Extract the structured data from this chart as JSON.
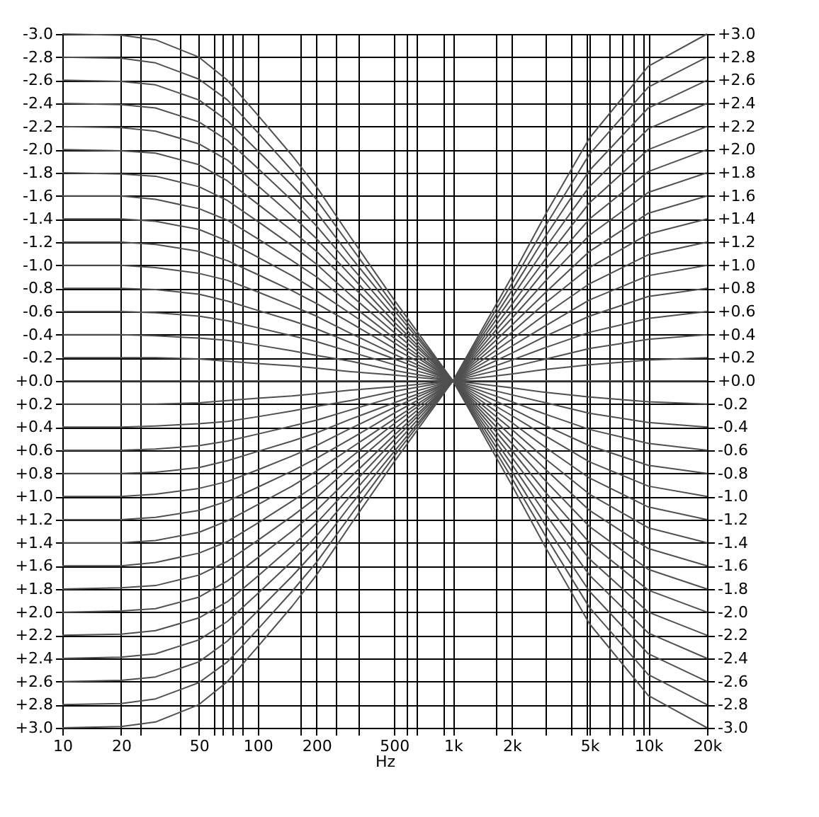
{
  "chart_data": {
    "type": "line",
    "xlabel": "Hz",
    "log": "x",
    "grid": true,
    "legend": false,
    "marker": "none",
    "line_style": "solid",
    "x": [
      10,
      20,
      30,
      50,
      70,
      100,
      150,
      200,
      300,
      500,
      1000,
      2000,
      3000,
      5000,
      10000,
      20000
    ],
    "xlim": [
      10,
      20000
    ],
    "xticks": [
      10,
      20,
      {
        "value": 25,
        "label": null
      },
      {
        "value": 40,
        "label": null
      },
      50,
      {
        "value": 60,
        "label": null
      },
      {
        "value": 66,
        "label": null
      },
      {
        "value": 74,
        "label": null
      },
      {
        "value": 83,
        "label": null
      },
      100,
      {
        "value": 165,
        "label": null
      },
      200,
      {
        "value": 250,
        "label": null
      },
      {
        "value": 330,
        "label": null
      },
      500,
      {
        "value": 580,
        "label": null
      },
      {
        "value": 655,
        "label": null
      },
      {
        "value": 900,
        "label": null
      },
      {
        "value": 1000,
        "label": "1k"
      },
      {
        "value": 1650,
        "label": null
      },
      {
        "value": 2000,
        "label": "2k"
      },
      {
        "value": 3000,
        "label": null
      },
      {
        "value": 4000,
        "label": null
      },
      {
        "value": 4800,
        "label": null
      },
      {
        "value": 5000,
        "label": "5k"
      },
      {
        "value": 6300,
        "label": null
      },
      {
        "value": 7300,
        "label": null
      },
      {
        "value": 8400,
        "label": null
      },
      {
        "value": 9400,
        "label": null
      },
      {
        "value": 10000,
        "label": "10k"
      },
      {
        "value": 20000,
        "label": "20k"
      }
    ],
    "ylim": [
      3.0,
      -3.0
    ],
    "yticks": [
      {
        "value": -3.0,
        "label": "-3.0"
      },
      {
        "value": -2.8,
        "label": "-2.8"
      },
      {
        "value": -2.6,
        "label": "-2.6"
      },
      {
        "value": -2.4,
        "label": "-2.4"
      },
      {
        "value": -2.2,
        "label": "-2.2"
      },
      {
        "value": -2.0,
        "label": "-2.0"
      },
      {
        "value": -1.8,
        "label": "-1.8"
      },
      {
        "value": -1.6,
        "label": "-1.6"
      },
      {
        "value": -1.4,
        "label": "-1.4"
      },
      {
        "value": -1.2,
        "label": "-1.2"
      },
      {
        "value": -1.0,
        "label": "-1.0"
      },
      {
        "value": -0.8,
        "label": "-0.8"
      },
      {
        "value": -0.6,
        "label": "-0.6"
      },
      {
        "value": -0.4,
        "label": "-0.4"
      },
      {
        "value": -0.2,
        "label": "-0.2"
      },
      {
        "value": 0.0,
        "label": "+0.0"
      },
      {
        "value": 0.2,
        "label": "+0.2"
      },
      {
        "value": 0.4,
        "label": "+0.4"
      },
      {
        "value": 0.6,
        "label": "+0.6"
      },
      {
        "value": 0.8,
        "label": "+0.8"
      },
      {
        "value": 1.0,
        "label": "+1.0"
      },
      {
        "value": 1.2,
        "label": "+1.2"
      },
      {
        "value": 1.4,
        "label": "+1.4"
      },
      {
        "value": 1.6,
        "label": "+1.6"
      },
      {
        "value": 1.8,
        "label": "+1.8"
      },
      {
        "value": 2.0,
        "label": "+2.0"
      },
      {
        "value": 2.2,
        "label": "+2.2"
      },
      {
        "value": 2.4,
        "label": "+2.4"
      },
      {
        "value": 2.6,
        "label": "+2.6"
      },
      {
        "value": 2.8,
        "label": "+2.8"
      },
      {
        "value": 3.0,
        "label": "+3.0"
      }
    ],
    "y2lim": [
      -3.0,
      3.0
    ],
    "y2ticks": [
      {
        "value": -3.0,
        "label": "-3.0"
      },
      {
        "value": -2.8,
        "label": "-2.8"
      },
      {
        "value": -2.6,
        "label": "-2.6"
      },
      {
        "value": -2.4,
        "label": "-2.4"
      },
      {
        "value": -2.2,
        "label": "-2.2"
      },
      {
        "value": -2.0,
        "label": "-2.0"
      },
      {
        "value": -1.8,
        "label": "-1.8"
      },
      {
        "value": -1.6,
        "label": "-1.6"
      },
      {
        "value": -1.4,
        "label": "-1.4"
      },
      {
        "value": -1.2,
        "label": "-1.2"
      },
      {
        "value": -1.0,
        "label": "-1.0"
      },
      {
        "value": -0.8,
        "label": "-0.8"
      },
      {
        "value": -0.6,
        "label": "-0.6"
      },
      {
        "value": -0.4,
        "label": "-0.4"
      },
      {
        "value": -0.2,
        "label": "-0.2"
      },
      {
        "value": 0.0,
        "label": "+0.0"
      },
      {
        "value": 0.2,
        "label": "+0.2"
      },
      {
        "value": 0.4,
        "label": "+0.4"
      },
      {
        "value": 0.6,
        "label": "+0.6"
      },
      {
        "value": 0.8,
        "label": "+0.8"
      },
      {
        "value": 1.0,
        "label": "+1.0"
      },
      {
        "value": 1.2,
        "label": "+1.2"
      },
      {
        "value": 1.4,
        "label": "+1.4"
      },
      {
        "value": 1.6,
        "label": "+1.6"
      },
      {
        "value": 1.8,
        "label": "+1.8"
      },
      {
        "value": 2.0,
        "label": "+2.0"
      },
      {
        "value": 2.2,
        "label": "+2.2"
      },
      {
        "value": 2.4,
        "label": "+2.4"
      },
      {
        "value": 2.6,
        "label": "+2.6"
      },
      {
        "value": 2.8,
        "label": "+2.8"
      },
      {
        "value": 3.0,
        "label": "+3.0"
      }
    ],
    "series": [
      {
        "color": "#505050",
        "values": [
          0,
          0,
          0,
          0,
          0,
          0,
          0,
          0,
          0,
          0,
          0,
          0,
          0,
          0,
          0,
          0
        ]
      },
      {
        "color": "#505050",
        "values": [
          -0.2,
          -0.2,
          -0.2,
          -0.19,
          -0.17,
          -0.15,
          -0.13,
          -0.11,
          -0.08,
          -0.05,
          0,
          0.06,
          0.1,
          0.14,
          0.18,
          0.2
        ]
      },
      {
        "color": "#505050",
        "values": [
          -0.4,
          -0.4,
          -0.39,
          -0.37,
          -0.35,
          -0.31,
          -0.26,
          -0.22,
          -0.17,
          -0.09,
          0,
          0.12,
          0.19,
          0.28,
          0.36,
          0.4
        ]
      },
      {
        "color": "#505050",
        "values": [
          -0.6,
          -0.6,
          -0.59,
          -0.56,
          -0.52,
          -0.46,
          -0.39,
          -0.34,
          -0.25,
          -0.14,
          0,
          0.18,
          0.29,
          0.42,
          0.54,
          0.6
        ]
      },
      {
        "color": "#505050",
        "values": [
          -0.8,
          -0.8,
          -0.79,
          -0.75,
          -0.69,
          -0.61,
          -0.52,
          -0.45,
          -0.33,
          -0.19,
          0,
          0.24,
          0.39,
          0.56,
          0.73,
          0.8
        ]
      },
      {
        "color": "#505050",
        "values": [
          -1.0,
          -1.0,
          -0.98,
          -0.93,
          -0.87,
          -0.77,
          -0.65,
          -0.56,
          -0.41,
          -0.23,
          0,
          0.3,
          0.48,
          0.7,
          0.91,
          1.0
        ]
      },
      {
        "color": "#505050",
        "values": [
          -1.2,
          -1.2,
          -1.18,
          -1.12,
          -1.04,
          -0.92,
          -0.78,
          -0.67,
          -0.5,
          -0.28,
          0,
          0.36,
          0.58,
          0.84,
          1.09,
          1.2
        ]
      },
      {
        "color": "#505050",
        "values": [
          -1.4,
          -1.4,
          -1.38,
          -1.31,
          -1.21,
          -1.07,
          -0.91,
          -0.78,
          -0.58,
          -0.33,
          0,
          0.42,
          0.68,
          0.98,
          1.27,
          1.4
        ]
      },
      {
        "color": "#505050",
        "values": [
          -1.6,
          -1.6,
          -1.57,
          -1.49,
          -1.39,
          -1.23,
          -1.04,
          -0.9,
          -0.66,
          -0.37,
          0,
          0.48,
          0.77,
          1.12,
          1.45,
          1.6
        ]
      },
      {
        "color": "#505050",
        "values": [
          -1.8,
          -1.79,
          -1.77,
          -1.68,
          -1.56,
          -1.38,
          -1.17,
          -1.01,
          -0.74,
          -0.42,
          0,
          0.54,
          0.87,
          1.26,
          1.63,
          1.8
        ]
      },
      {
        "color": "#505050",
        "values": [
          -2.0,
          -1.99,
          -1.97,
          -1.87,
          -1.73,
          -1.53,
          -1.3,
          -1.12,
          -0.83,
          -0.47,
          0,
          0.6,
          0.97,
          1.4,
          1.81,
          2.0
        ]
      },
      {
        "color": "#505050",
        "values": [
          -2.2,
          -2.19,
          -2.16,
          -2.05,
          -1.91,
          -1.69,
          -1.43,
          -1.23,
          -0.91,
          -0.51,
          0,
          0.66,
          1.06,
          1.54,
          2.0,
          2.2
        ]
      },
      {
        "color": "#505050",
        "values": [
          -2.4,
          -2.39,
          -2.36,
          -2.24,
          -2.08,
          -1.84,
          -1.56,
          -1.34,
          -0.99,
          -0.56,
          0,
          0.72,
          1.16,
          1.68,
          2.18,
          2.4
        ]
      },
      {
        "color": "#505050",
        "values": [
          -2.6,
          -2.59,
          -2.56,
          -2.43,
          -2.25,
          -1.99,
          -1.69,
          -1.46,
          -1.07,
          -0.61,
          0,
          0.78,
          1.26,
          1.82,
          2.36,
          2.6
        ]
      },
      {
        "color": "#505050",
        "values": [
          -2.8,
          -2.79,
          -2.75,
          -2.61,
          -2.43,
          -2.15,
          -1.82,
          -1.57,
          -1.16,
          -0.65,
          0,
          0.84,
          1.35,
          1.96,
          2.54,
          2.8
        ]
      },
      {
        "color": "#505050",
        "values": [
          -3.0,
          -2.99,
          -2.95,
          -2.8,
          -2.6,
          -2.3,
          -1.95,
          -1.68,
          -1.24,
          -0.7,
          0,
          0.9,
          1.45,
          2.1,
          2.72,
          3.0
        ]
      },
      {
        "color": "#505050",
        "axis": "y2",
        "values": [
          -0.2,
          -0.2,
          -0.2,
          -0.19,
          -0.17,
          -0.15,
          -0.13,
          -0.11,
          -0.08,
          -0.05,
          0,
          0.06,
          0.1,
          0.14,
          0.18,
          0.2
        ]
      },
      {
        "color": "#505050",
        "axis": "y2",
        "values": [
          -0.4,
          -0.4,
          -0.39,
          -0.37,
          -0.35,
          -0.31,
          -0.26,
          -0.22,
          -0.17,
          -0.09,
          0,
          0.12,
          0.19,
          0.28,
          0.36,
          0.4
        ]
      },
      {
        "color": "#505050",
        "axis": "y2",
        "values": [
          -0.6,
          -0.6,
          -0.59,
          -0.56,
          -0.52,
          -0.46,
          -0.39,
          -0.34,
          -0.25,
          -0.14,
          0,
          0.18,
          0.29,
          0.42,
          0.54,
          0.6
        ]
      },
      {
        "color": "#505050",
        "axis": "y2",
        "values": [
          -0.8,
          -0.8,
          -0.79,
          -0.75,
          -0.69,
          -0.61,
          -0.52,
          -0.45,
          -0.33,
          -0.19,
          0,
          0.24,
          0.39,
          0.56,
          0.73,
          0.8
        ]
      },
      {
        "color": "#505050",
        "axis": "y2",
        "values": [
          -1.0,
          -1.0,
          -0.98,
          -0.93,
          -0.87,
          -0.77,
          -0.65,
          -0.56,
          -0.41,
          -0.23,
          0,
          0.3,
          0.48,
          0.7,
          0.91,
          1.0
        ]
      },
      {
        "color": "#505050",
        "axis": "y2",
        "values": [
          -1.2,
          -1.2,
          -1.18,
          -1.12,
          -1.04,
          -0.92,
          -0.78,
          -0.67,
          -0.5,
          -0.28,
          0,
          0.36,
          0.58,
          0.84,
          1.09,
          1.2
        ]
      },
      {
        "color": "#505050",
        "axis": "y2",
        "values": [
          -1.4,
          -1.4,
          -1.38,
          -1.31,
          -1.21,
          -1.07,
          -0.91,
          -0.78,
          -0.58,
          -0.33,
          0,
          0.42,
          0.68,
          0.98,
          1.27,
          1.4
        ]
      },
      {
        "color": "#505050",
        "axis": "y2",
        "values": [
          -1.6,
          -1.6,
          -1.57,
          -1.49,
          -1.39,
          -1.23,
          -1.04,
          -0.9,
          -0.66,
          -0.37,
          0,
          0.48,
          0.77,
          1.12,
          1.45,
          1.6
        ]
      },
      {
        "color": "#505050",
        "axis": "y2",
        "values": [
          -1.8,
          -1.79,
          -1.77,
          -1.68,
          -1.56,
          -1.38,
          -1.17,
          -1.01,
          -0.74,
          -0.42,
          0,
          0.54,
          0.87,
          1.26,
          1.63,
          1.8
        ]
      },
      {
        "color": "#505050",
        "axis": "y2",
        "values": [
          -2.0,
          -1.99,
          -1.97,
          -1.87,
          -1.73,
          -1.53,
          -1.3,
          -1.12,
          -0.83,
          -0.47,
          0,
          0.6,
          0.97,
          1.4,
          1.81,
          2.0
        ]
      },
      {
        "color": "#505050",
        "axis": "y2",
        "values": [
          -2.2,
          -2.19,
          -2.16,
          -2.05,
          -1.91,
          -1.69,
          -1.43,
          -1.23,
          -0.91,
          -0.51,
          0,
          0.66,
          1.06,
          1.54,
          2.0,
          2.2
        ]
      },
      {
        "color": "#505050",
        "axis": "y2",
        "values": [
          -2.4,
          -2.39,
          -2.36,
          -2.24,
          -2.08,
          -1.84,
          -1.56,
          -1.34,
          -0.99,
          -0.56,
          0,
          0.72,
          1.16,
          1.68,
          2.18,
          2.4
        ]
      },
      {
        "color": "#505050",
        "axis": "y2",
        "values": [
          -2.6,
          -2.59,
          -2.56,
          -2.43,
          -2.25,
          -1.99,
          -1.69,
          -1.46,
          -1.07,
          -0.61,
          0,
          0.78,
          1.26,
          1.82,
          2.36,
          2.6
        ]
      },
      {
        "color": "#505050",
        "axis": "y2",
        "values": [
          -2.8,
          -2.79,
          -2.75,
          -2.61,
          -2.43,
          -2.15,
          -1.82,
          -1.57,
          -1.16,
          -0.65,
          0,
          0.84,
          1.35,
          1.96,
          2.54,
          2.8
        ]
      },
      {
        "color": "#505050",
        "axis": "y2",
        "values": [
          -3.0,
          -2.99,
          -2.95,
          -2.8,
          -2.6,
          -2.3,
          -1.95,
          -1.68,
          -1.24,
          -0.7,
          0,
          0.9,
          1.45,
          2.1,
          2.72,
          3.0
        ]
      }
    ]
  }
}
